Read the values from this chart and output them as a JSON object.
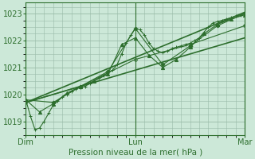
{
  "bg_color": "#cce8d8",
  "plot_bg_color": "#cce8d8",
  "grid_color": "#99bba8",
  "line_color": "#2d6e2d",
  "ylim": [
    1018.5,
    1023.4
  ],
  "yticks": [
    1019,
    1020,
    1021,
    1022,
    1023
  ],
  "xlabel": "Pression niveau de la mer( hPa )",
  "xlabel_color": "#2d6e2d",
  "xtick_labels": [
    "Dim",
    "Lun",
    "Mar"
  ],
  "xtick_positions": [
    0,
    48,
    96
  ],
  "total_hours": 96,
  "series": [
    {
      "x": [
        0,
        2,
        4,
        6,
        8,
        10,
        12,
        14,
        16,
        18,
        20,
        22,
        24,
        26,
        28,
        30,
        32,
        34,
        36,
        38,
        40,
        42,
        44,
        46,
        48,
        50,
        52,
        54,
        56,
        58,
        60,
        62,
        64,
        66,
        68,
        70,
        72,
        74,
        76,
        78,
        80,
        82,
        84,
        86,
        88,
        90,
        92,
        94,
        96
      ],
      "y": [
        1019.8,
        1019.2,
        1018.7,
        1018.75,
        1019.0,
        1019.3,
        1019.6,
        1019.75,
        1019.9,
        1020.0,
        1020.1,
        1020.2,
        1020.25,
        1020.3,
        1020.4,
        1020.5,
        1020.6,
        1020.7,
        1020.8,
        1020.9,
        1021.1,
        1021.5,
        1021.9,
        1022.2,
        1022.45,
        1022.4,
        1022.2,
        1021.9,
        1021.7,
        1021.6,
        1021.55,
        1021.6,
        1021.7,
        1021.75,
        1021.8,
        1021.85,
        1021.9,
        1022.0,
        1022.1,
        1022.3,
        1022.5,
        1022.65,
        1022.7,
        1022.75,
        1022.8,
        1022.85,
        1022.9,
        1022.95,
        1023.0
      ],
      "marker": "+",
      "markersize": 3,
      "linewidth": 0.8,
      "linestyle": "-"
    },
    {
      "x": [
        0,
        6,
        12,
        18,
        24,
        30,
        36,
        42,
        48,
        54,
        60,
        66,
        72,
        78,
        84,
        90,
        96
      ],
      "y": [
        1019.8,
        1019.35,
        1019.65,
        1020.05,
        1020.3,
        1020.5,
        1020.75,
        1021.85,
        1022.1,
        1021.45,
        1021.0,
        1021.3,
        1021.75,
        1022.25,
        1022.6,
        1022.8,
        1022.95
      ],
      "marker": "^",
      "markersize": 3,
      "linewidth": 0.8,
      "linestyle": "-"
    },
    {
      "x": [
        0,
        12,
        24,
        36,
        48,
        60,
        72,
        84,
        96
      ],
      "y": [
        1019.8,
        1019.7,
        1020.3,
        1020.85,
        1022.45,
        1021.1,
        1021.8,
        1022.55,
        1023.0
      ],
      "marker": "D",
      "markersize": 2.5,
      "linewidth": 0.8,
      "linestyle": "-"
    },
    {
      "x": [
        0,
        96
      ],
      "y": [
        1019.7,
        1022.1
      ],
      "marker": null,
      "markersize": 0,
      "linewidth": 1.2,
      "linestyle": "-"
    },
    {
      "x": [
        0,
        96
      ],
      "y": [
        1019.7,
        1023.05
      ],
      "marker": null,
      "markersize": 0,
      "linewidth": 1.2,
      "linestyle": "-"
    },
    {
      "x": [
        0,
        24,
        48,
        72,
        96
      ],
      "y": [
        1019.7,
        1020.3,
        1021.3,
        1021.85,
        1022.55
      ],
      "marker": "o",
      "markersize": 2.5,
      "linewidth": 0.8,
      "linestyle": "-"
    }
  ]
}
